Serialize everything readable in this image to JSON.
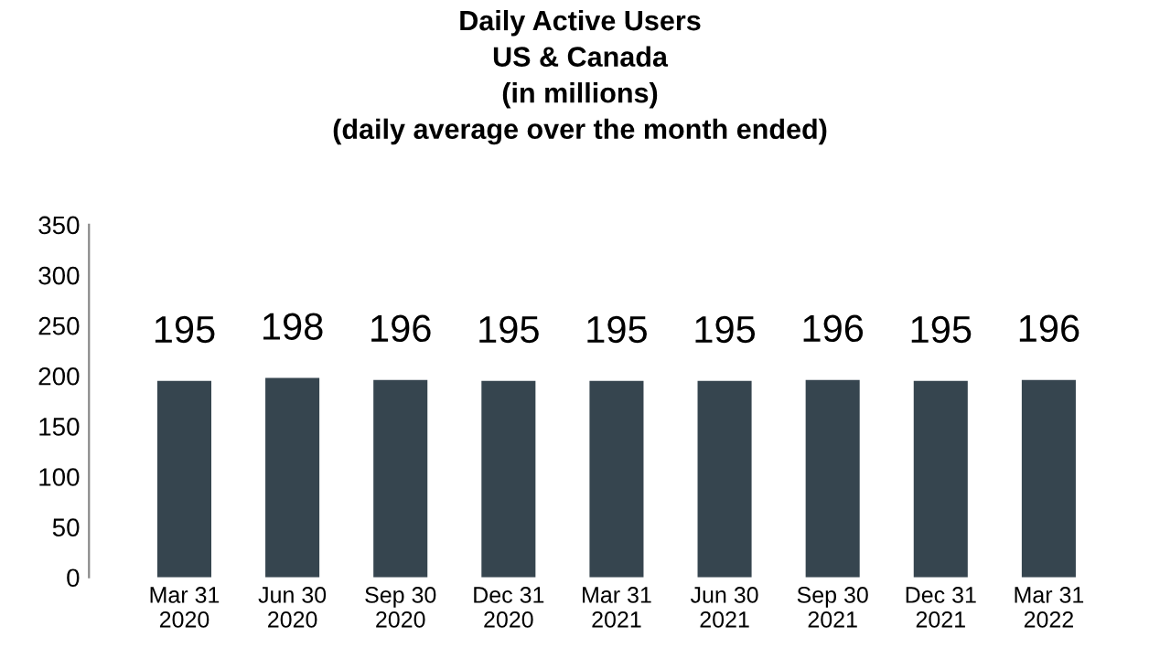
{
  "chart_data": {
    "type": "bar",
    "title": "Daily Active Users\nUS & Canada\n(in millions)\n(daily average over the month ended)",
    "categories": [
      "Mar 31\n2020",
      "Jun 30\n2020",
      "Sep 30\n2020",
      "Dec 31\n2020",
      "Mar 31\n2021",
      "Jun 30\n2021",
      "Sep 30\n2021",
      "Dec 31\n2021",
      "Mar 31\n2022"
    ],
    "values": [
      195,
      198,
      196,
      195,
      195,
      195,
      196,
      195,
      196
    ],
    "color": "#36454f",
    "ylim": [
      0,
      350
    ],
    "yticks": [
      0,
      50,
      100,
      150,
      200,
      250,
      300,
      350
    ],
    "data_labels": true,
    "grid": false,
    "legend": false
  }
}
